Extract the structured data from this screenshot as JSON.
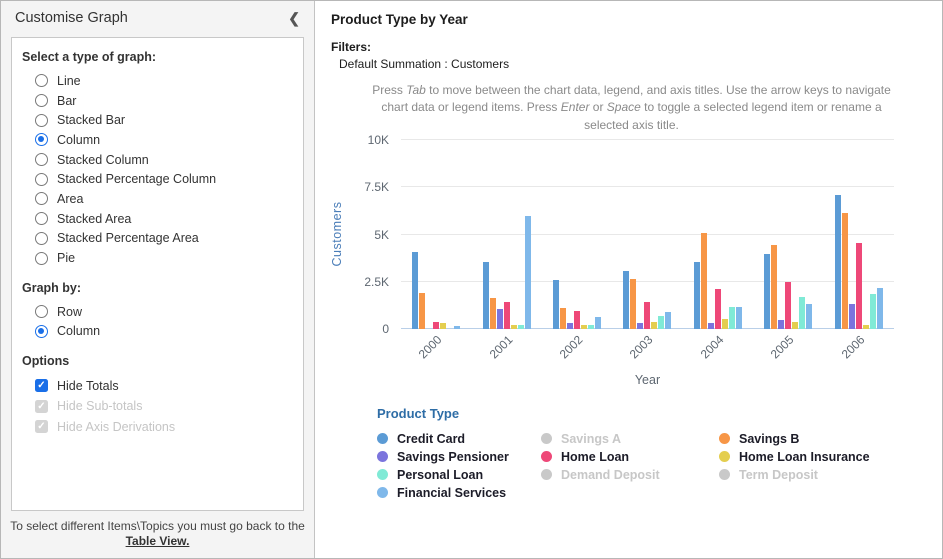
{
  "left_panel": {
    "title": "Customise Graph",
    "collapse_icon": "❮",
    "graph_type_label": "Select a type of graph:",
    "graph_types": [
      "Line",
      "Bar",
      "Stacked Bar",
      "Column",
      "Stacked Column",
      "Stacked Percentage Column",
      "Area",
      "Stacked Area",
      "Stacked Percentage Area",
      "Pie"
    ],
    "graph_type_selected": "Column",
    "graph_by_label": "Graph by:",
    "graph_by_options": [
      "Row",
      "Column"
    ],
    "graph_by_selected": "Column",
    "options_label": "Options",
    "options": [
      {
        "label": "Hide Totals",
        "checked": true,
        "disabled": false
      },
      {
        "label": "Hide Sub-totals",
        "checked": true,
        "disabled": true
      },
      {
        "label": "Hide Axis Derivations",
        "checked": true,
        "disabled": true
      }
    ],
    "footer_text": "To select different Items\\Topics you must go back to the",
    "footer_link": "Table View."
  },
  "main": {
    "title": "Product Type by Year",
    "filters_label": "Filters:",
    "filter_value": "Default Summation : Customers",
    "instructions": [
      {
        "text": "Press "
      },
      {
        "text": "Tab",
        "italic": true
      },
      {
        "text": " to move between the chart data, legend, and axis titles. Use the arrow keys to navigate chart data or legend items. Press "
      },
      {
        "text": "Enter",
        "italic": true
      },
      {
        "text": " or "
      },
      {
        "text": "Space",
        "italic": true
      },
      {
        "text": " to toggle a selected legend item or rename a selected axis title."
      }
    ]
  },
  "chart_data": {
    "type": "bar",
    "title": "Product Type by Year",
    "xlabel": "Year",
    "ylabel": "Customers",
    "ylim": [
      0,
      10000
    ],
    "yticks": [
      "0",
      "2.5K",
      "5K",
      "7.5K",
      "10K"
    ],
    "grid": true,
    "categories": [
      "2000",
      "2001",
      "2002",
      "2003",
      "2004",
      "2005",
      "2006"
    ],
    "series": [
      {
        "name": "Credit Card",
        "color": "#5B9BD5",
        "values": [
          4100,
          3550,
          2600,
          3050,
          3550,
          3950,
          7100
        ]
      },
      {
        "name": "Savings B",
        "color": "#F79646",
        "values": [
          1900,
          1650,
          1100,
          2650,
          5100,
          4450,
          6150
        ]
      },
      {
        "name": "Savings Pensioner",
        "color": "#7B74DD",
        "values": [
          0,
          1050,
          300,
          320,
          300,
          480,
          1350
        ]
      },
      {
        "name": "Home Loan",
        "color": "#EE4878",
        "values": [
          350,
          1450,
          950,
          1450,
          2100,
          2500,
          4550
        ]
      },
      {
        "name": "Home Loan Insurance",
        "color": "#E4CE4F",
        "values": [
          300,
          200,
          200,
          380,
          520,
          380,
          200
        ]
      },
      {
        "name": "Personal Loan",
        "color": "#80EAD6",
        "values": [
          0,
          200,
          200,
          700,
          1150,
          1700,
          1850
        ]
      },
      {
        "name": "Financial Services",
        "color": "#7FB8EA",
        "values": [
          150,
          6000,
          650,
          900,
          1150,
          1300,
          2150
        ]
      }
    ],
    "legend": {
      "title": "Product Type",
      "position": "bottom",
      "items": [
        {
          "label": "Credit Card",
          "color": "#5B9BD5",
          "disabled": false
        },
        {
          "label": "Savings A",
          "color": "#C9C9C9",
          "disabled": true
        },
        {
          "label": "Savings B",
          "color": "#F79646",
          "disabled": false
        },
        {
          "label": "Savings Pensioner",
          "color": "#7B74DD",
          "disabled": false
        },
        {
          "label": "Home Loan",
          "color": "#EE4878",
          "disabled": false
        },
        {
          "label": "Home Loan Insurance",
          "color": "#E4CE4F",
          "disabled": false
        },
        {
          "label": "Personal Loan",
          "color": "#80EAD6",
          "disabled": false
        },
        {
          "label": "Demand Deposit",
          "color": "#C9C9C9",
          "disabled": true
        },
        {
          "label": "Term Deposit",
          "color": "#C9C9C9",
          "disabled": true
        },
        {
          "label": "Financial Services",
          "color": "#7FB8EA",
          "disabled": false
        }
      ]
    }
  }
}
